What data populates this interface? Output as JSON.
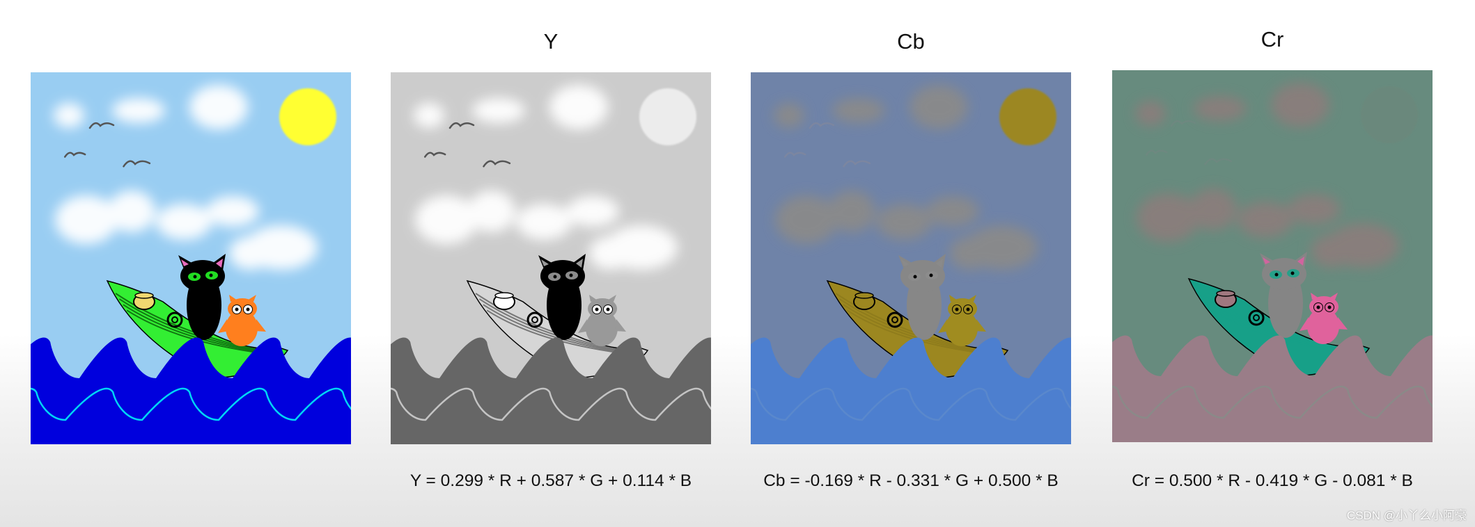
{
  "panels": [
    {
      "key": "rgb",
      "title": "",
      "formula": "",
      "colors": {
        "sky": "#99cdf2",
        "cloud": "#ffffff",
        "sun": "#ffff33",
        "bird": "#555555",
        "cat": "#000000",
        "cat_eye": "#22dd22",
        "ear_inner": "#e86bbd",
        "owl": "#ff7f1e",
        "owl_eye": "#ffffff",
        "boat": "#33ee33",
        "boat_line": "#117711",
        "pot": "#f0d870",
        "sea": "#0000dd",
        "wave_line": "#00d6f5"
      }
    },
    {
      "key": "y",
      "title": "Y",
      "formula": "Y = 0.299 * R + 0.587 * G + 0.114 * B",
      "colors": {
        "sky": "#cccccc",
        "cloud": "#ffffff",
        "sun": "#ececec",
        "bird": "#555555",
        "cat": "#000000",
        "cat_eye": "#8c8c8c",
        "ear_inner": "#9a9a9a",
        "owl": "#999999",
        "owl_eye": "#ffffff",
        "boat": "#d6d6d6",
        "boat_line": "#777777",
        "pot": "#ffffff",
        "sea": "#666666",
        "wave_line": "#c4c4c4"
      }
    },
    {
      "key": "cb",
      "title": "Cb",
      "formula": "Cb = -0.169 * R - 0.331 * G + 0.500 * B",
      "colors": {
        "sky": "#6f83a8",
        "cloud": "#8a8a8a",
        "sun": "#9c8720",
        "bird": "#7c86a0",
        "cat": "#878787",
        "cat_eye": "#8c8c8c",
        "ear_inner": "#8a8a8a",
        "owl": "#a08c20",
        "owl_eye": "#a08c20",
        "boat": "#9c8720",
        "boat_line": "#8f7c1c",
        "pot": "#9c8720",
        "sea": "#4d7fcf",
        "wave_line": "#5a88cc"
      }
    },
    {
      "key": "cr",
      "title": "Cr",
      "formula": "Cr = 0.500 * R - 0.419 * G - 0.081 * B",
      "colors": {
        "sky": "#678b7e",
        "cloud": "#8a7e7c",
        "sun": "#6a887c",
        "bird": "#6e8880",
        "cat": "#858585",
        "cat_eye": "#26a089",
        "ear_inner": "#d1649f",
        "owl": "#e0629c",
        "owl_eye": "#e0629c",
        "boat": "#17a088",
        "boat_line": "#17a088",
        "pot": "#a07880",
        "sea": "#9a7d88",
        "wave_line": "#8a8a88"
      }
    }
  ],
  "watermark": "CSDN @小丫么小阿豪"
}
